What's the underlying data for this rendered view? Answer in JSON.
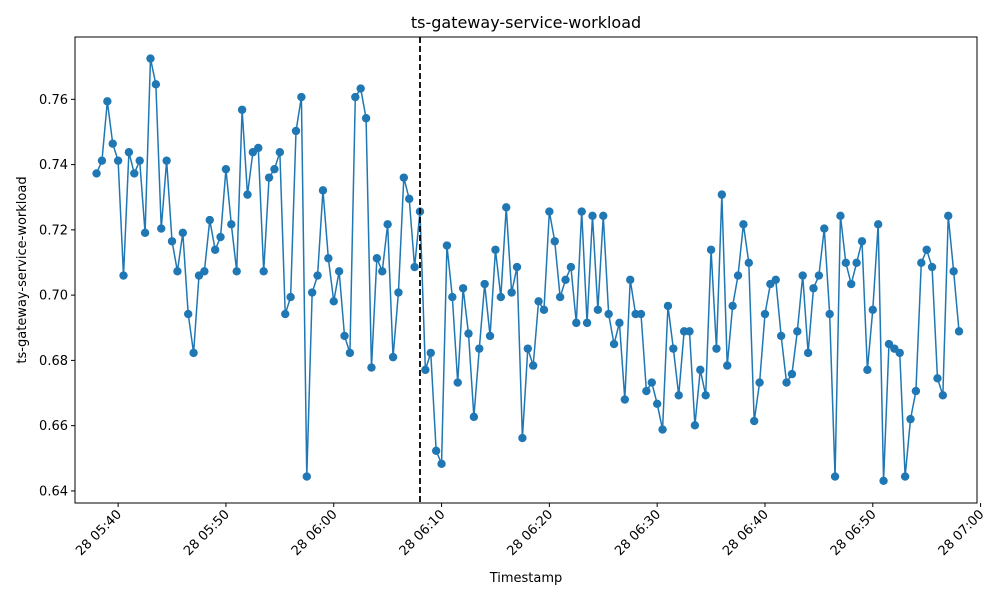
{
  "chart_data": {
    "type": "line",
    "title": "ts-gateway-service-workload",
    "xlabel": "Timestamp",
    "ylabel": "ts-gateway-service-workload",
    "x_start": "2024-01-28T05:38:00",
    "x_step_minutes": 0.5,
    "xlim": [
      "2024-01-28T05:36:00",
      "2024-01-28T06:59:40"
    ],
    "ylim": [
      0.6363,
      0.7791
    ],
    "x_ticks": [
      {
        "time": "2024-01-28T05:40:00",
        "label": "28 05:40"
      },
      {
        "time": "2024-01-28T05:50:00",
        "label": "28 05:50"
      },
      {
        "time": "2024-01-28T06:00:00",
        "label": "28 06:00"
      },
      {
        "time": "2024-01-28T06:10:00",
        "label": "28 06:10"
      },
      {
        "time": "2024-01-28T06:20:00",
        "label": "28 06:20"
      },
      {
        "time": "2024-01-28T06:30:00",
        "label": "28 06:30"
      },
      {
        "time": "2024-01-28T06:40:00",
        "label": "28 06:40"
      },
      {
        "time": "2024-01-28T06:50:00",
        "label": "28 06:50"
      },
      {
        "time": "2024-01-28T07:00:00",
        "label": "28 07:00"
      }
    ],
    "y_ticks": [
      {
        "value": 0.64,
        "label": "0.64"
      },
      {
        "value": 0.66,
        "label": "0.66"
      },
      {
        "value": 0.68,
        "label": "0.68"
      },
      {
        "value": 0.7,
        "label": "0.70"
      },
      {
        "value": 0.72,
        "label": "0.72"
      },
      {
        "value": 0.74,
        "label": "0.74"
      },
      {
        "value": 0.76,
        "label": "0.76"
      }
    ],
    "vline": {
      "time": "2024-01-28T06:08:00",
      "style": "dashed",
      "color": "#000000"
    },
    "series": [
      {
        "color": "#1f77b4",
        "values": [
          0.7373,
          0.7412,
          0.7594,
          0.7464,
          0.7412,
          0.706,
          0.7438,
          0.7373,
          0.7412,
          0.7191,
          0.7725,
          0.7646,
          0.7204,
          0.7412,
          0.7165,
          0.7073,
          0.7191,
          0.6942,
          0.6823,
          0.706,
          0.7073,
          0.723,
          0.7139,
          0.7178,
          0.7386,
          0.7217,
          0.7073,
          0.7568,
          0.7308,
          0.7438,
          0.7451,
          0.7073,
          0.736,
          0.7386,
          0.7438,
          0.6942,
          0.6994,
          0.7503,
          0.7607,
          0.6444,
          0.7008,
          0.706,
          0.7321,
          0.7113,
          0.6981,
          0.7073,
          0.6875,
          0.6823,
          0.7607,
          0.7633,
          0.7542,
          0.6778,
          0.7113,
          0.7073,
          0.7217,
          0.681,
          0.7008,
          0.736,
          0.7295,
          0.7086,
          0.7256,
          0.6771,
          0.6823,
          0.6523,
          0.6483,
          0.7152,
          0.6994,
          0.6732,
          0.7021,
          0.6882,
          0.6627,
          0.6836,
          0.7034,
          0.6875,
          0.7139,
          0.6994,
          0.7269,
          0.7008,
          0.7086,
          0.6562,
          0.6836,
          0.6784,
          0.6981,
          0.6955,
          0.7256,
          0.7165,
          0.6994,
          0.7047,
          0.7086,
          0.6915,
          0.7256,
          0.6915,
          0.7243,
          0.6955,
          0.7243,
          0.6942,
          0.685,
          0.6915,
          0.668,
          0.7047,
          0.6942,
          0.6942,
          0.6706,
          0.6732,
          0.6667,
          0.6588,
          0.6967,
          0.6836,
          0.6693,
          0.6889,
          0.6889,
          0.6601,
          0.6771,
          0.6693,
          0.7139,
          0.6836,
          0.7308,
          0.6784,
          0.6967,
          0.706,
          0.7217,
          0.7099,
          0.6614,
          0.6732,
          0.6942,
          0.7034,
          0.7047,
          0.6875,
          0.6732,
          0.6758,
          0.6889,
          0.706,
          0.6823,
          0.7021,
          0.706,
          0.7204,
          0.6942,
          0.6444,
          0.7243,
          0.7099,
          0.7034,
          0.7099,
          0.7165,
          0.6771,
          0.6955,
          0.7217,
          0.6431,
          0.685,
          0.6836,
          0.6823,
          0.6444,
          0.662,
          0.6706,
          0.7099,
          0.7139,
          0.7086,
          0.6745,
          0.6693,
          0.7243,
          0.7073,
          0.6889
        ]
      }
    ]
  }
}
